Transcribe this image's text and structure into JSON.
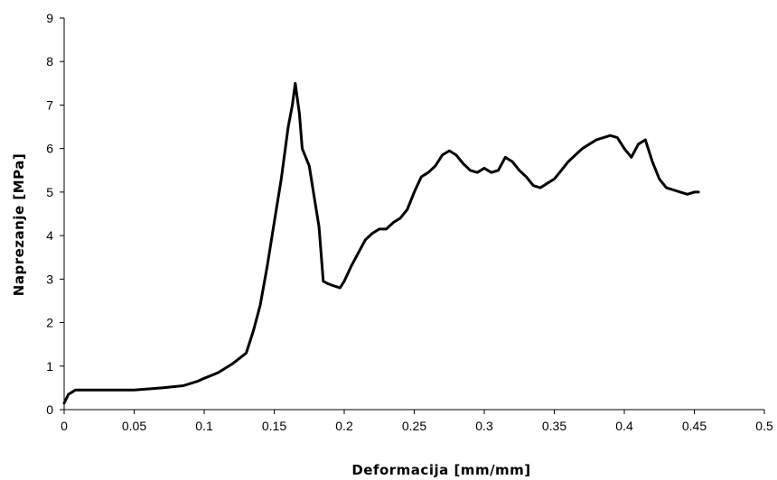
{
  "chart_data": {
    "type": "line",
    "title": "",
    "xlabel": "Deformacija [mm/mm]",
    "ylabel": "Naprezanje [MPa]",
    "xlim": [
      0,
      0.5
    ],
    "ylim": [
      0,
      9
    ],
    "xticks": [
      "0",
      "0.05",
      "0.1",
      "0.15",
      "0.2",
      "0.25",
      "0.3",
      "0.35",
      "0.4",
      "0.45",
      "0.5"
    ],
    "yticks": [
      "0",
      "1",
      "2",
      "3",
      "4",
      "5",
      "6",
      "7",
      "8",
      "9"
    ],
    "grid": false,
    "legend": "none",
    "line_color": "#000000",
    "series": [
      {
        "x": [
          0.0,
          0.003,
          0.008,
          0.02,
          0.05,
          0.07,
          0.085,
          0.095,
          0.1,
          0.11,
          0.12,
          0.13,
          0.135,
          0.14,
          0.145,
          0.15,
          0.155,
          0.16,
          0.163,
          0.165,
          0.168,
          0.17,
          0.175,
          0.178,
          0.182,
          0.185,
          0.188,
          0.192,
          0.197,
          0.2,
          0.205,
          0.21,
          0.215,
          0.22,
          0.225,
          0.23,
          0.235,
          0.24,
          0.245,
          0.25,
          0.255,
          0.26,
          0.265,
          0.27,
          0.275,
          0.28,
          0.285,
          0.29,
          0.295,
          0.3,
          0.305,
          0.31,
          0.315,
          0.32,
          0.325,
          0.33,
          0.335,
          0.34,
          0.345,
          0.35,
          0.355,
          0.36,
          0.365,
          0.37,
          0.375,
          0.38,
          0.385,
          0.39,
          0.395,
          0.4,
          0.405,
          0.41,
          0.415,
          0.42,
          0.425,
          0.43,
          0.435,
          0.44,
          0.445,
          0.45,
          0.453
        ],
        "y": [
          0.15,
          0.35,
          0.45,
          0.45,
          0.45,
          0.5,
          0.55,
          0.65,
          0.72,
          0.85,
          1.05,
          1.3,
          1.8,
          2.4,
          3.3,
          4.3,
          5.3,
          6.5,
          7.0,
          7.5,
          6.8,
          6.0,
          5.6,
          5.0,
          4.2,
          2.95,
          2.9,
          2.85,
          2.8,
          2.95,
          3.3,
          3.6,
          3.9,
          4.05,
          4.15,
          4.15,
          4.3,
          4.4,
          4.6,
          5.0,
          5.35,
          5.45,
          5.6,
          5.85,
          5.95,
          5.85,
          5.65,
          5.5,
          5.45,
          5.55,
          5.45,
          5.5,
          5.8,
          5.7,
          5.5,
          5.35,
          5.15,
          5.1,
          5.2,
          5.3,
          5.5,
          5.7,
          5.85,
          6.0,
          6.1,
          6.2,
          6.25,
          6.3,
          6.25,
          6.0,
          5.8,
          6.1,
          6.2,
          5.7,
          5.3,
          5.1,
          5.05,
          5.0,
          4.95,
          5.0,
          5.0
        ]
      }
    ]
  }
}
